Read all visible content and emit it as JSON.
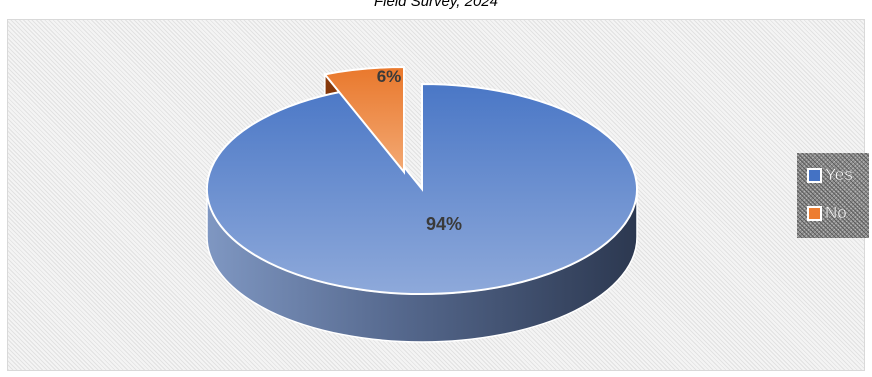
{
  "caption": "Field Survey, 2024",
  "chart_data": {
    "type": "pie",
    "title": "",
    "categories": [
      "Yes",
      "No"
    ],
    "values": [
      94,
      6
    ],
    "labels": [
      "94%",
      "6%"
    ],
    "colors": [
      "#4472c4",
      "#ed7d31"
    ],
    "exploded": [
      "No"
    ],
    "style": "3d",
    "legend": {
      "position": "right",
      "entries": [
        "Yes",
        "No"
      ]
    }
  }
}
